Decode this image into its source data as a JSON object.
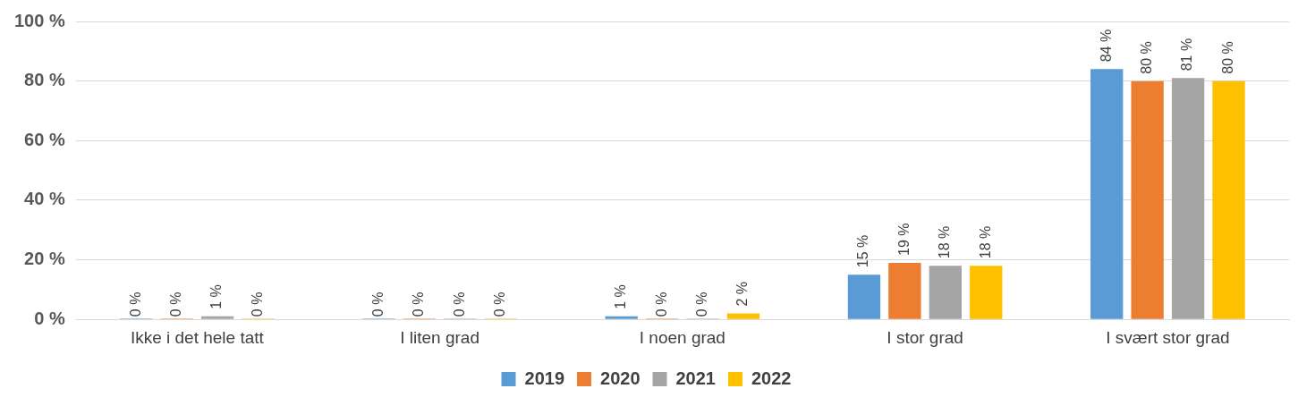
{
  "chart_data": {
    "type": "bar",
    "categories": [
      "Ikke i det hele tatt",
      "I liten grad",
      "I noen grad",
      "I stor grad",
      "I svært stor grad"
    ],
    "series": [
      {
        "name": "2019",
        "color": "#5b9bd5",
        "values": [
          0,
          0,
          1,
          15,
          84
        ],
        "value_labels": [
          "0 %",
          "0 %",
          "1 %",
          "15 %",
          "84 %"
        ]
      },
      {
        "name": "2020",
        "color": "#ed7d31",
        "values": [
          0,
          0,
          0,
          19,
          80
        ],
        "value_labels": [
          "0 %",
          "0 %",
          "0 %",
          "19 %",
          "80 %"
        ]
      },
      {
        "name": "2021",
        "color": "#a5a5a5",
        "values": [
          1,
          0,
          0,
          18,
          81
        ],
        "value_labels": [
          "1 %",
          "0 %",
          "0 %",
          "18 %",
          "81 %"
        ]
      },
      {
        "name": "2022",
        "color": "#ffc000",
        "values": [
          0,
          0,
          2,
          18,
          80
        ],
        "value_labels": [
          "0 %",
          "0 %",
          "2 %",
          "18 %",
          "80 %"
        ]
      }
    ],
    "ylim": [
      0,
      100
    ],
    "yticks": [
      {
        "value": 0,
        "label": "0 %"
      },
      {
        "value": 20,
        "label": "20 %"
      },
      {
        "value": 40,
        "label": "40 %"
      },
      {
        "value": 60,
        "label": "60 %"
      },
      {
        "value": 80,
        "label": "80 %"
      },
      {
        "value": 100,
        "label": "100 %"
      }
    ],
    "grid": "y",
    "legend": "bottom"
  }
}
